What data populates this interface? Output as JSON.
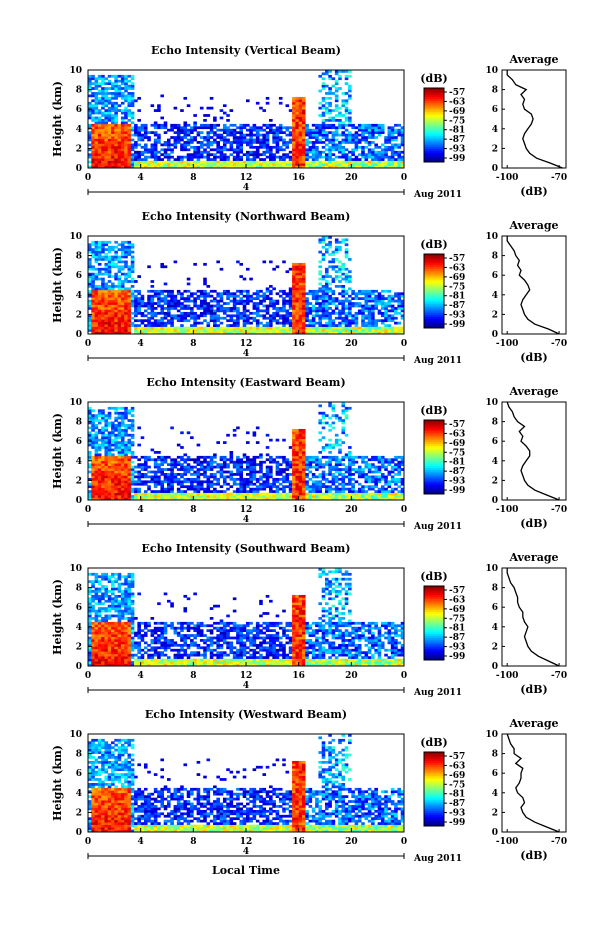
{
  "chart_data": [
    {
      "type": "heatmap",
      "title": "Echo Intensity (Vertical Beam)",
      "ylabel": "Height (km)",
      "xlabel": "",
      "x_ticks": [
        "0",
        "4",
        "8",
        "12",
        "16",
        "20",
        "0"
      ],
      "y_ticks": [
        "0",
        "2",
        "4",
        "6",
        "8",
        "10"
      ],
      "xlim": [
        0,
        24
      ],
      "ylim": [
        0,
        10
      ],
      "date_marker": "4",
      "date_label": "Aug 2011",
      "colorbar_title": "(dB)",
      "colorbar_ticks": [
        "-57",
        "-63",
        "-69",
        "-75",
        "-81",
        "-87",
        "-93",
        "-99"
      ],
      "profile_title": "Average",
      "profile_xlabel": "(dB)",
      "profile_x_ticks": [
        "-100",
        "-70"
      ],
      "profile_xlim": [
        -103,
        -66
      ],
      "profile": {
        "height_km": [
          0,
          0.5,
          1,
          1.5,
          2,
          2.5,
          3,
          3.5,
          4,
          4.5,
          5,
          5.5,
          6,
          6.5,
          7,
          7.5,
          8,
          8.5,
          9,
          9.5,
          10
        ],
        "db": [
          -68,
          -75,
          -83,
          -87,
          -89,
          -90,
          -91,
          -90,
          -88,
          -86,
          -85,
          -86,
          -90,
          -91,
          -90,
          -92,
          -89,
          -95,
          -97,
          -100,
          -100
        ]
      }
    },
    {
      "type": "heatmap",
      "title": "Echo Intensity (Northward Beam)",
      "ylabel": "Height (km)",
      "xlabel": "",
      "x_ticks": [
        "0",
        "4",
        "8",
        "12",
        "16",
        "20",
        "0"
      ],
      "y_ticks": [
        "0",
        "2",
        "4",
        "6",
        "8",
        "10"
      ],
      "xlim": [
        0,
        24
      ],
      "ylim": [
        0,
        10
      ],
      "date_marker": "4",
      "date_label": "Aug 2011",
      "colorbar_title": "(dB)",
      "colorbar_ticks": [
        "-57",
        "-63",
        "-69",
        "-75",
        "-81",
        "-87",
        "-93",
        "-99"
      ],
      "profile_title": "Average",
      "profile_xlabel": "(dB)",
      "profile_x_ticks": [
        "-100",
        "-70"
      ],
      "profile_xlim": [
        -103,
        -66
      ],
      "profile": {
        "height_km": [
          0,
          0.5,
          1,
          1.5,
          2,
          2.5,
          3,
          3.5,
          4,
          4.5,
          5,
          5.5,
          6,
          6.5,
          7,
          7.5,
          8,
          8.5,
          9,
          9.5,
          10
        ],
        "db": [
          -70,
          -76,
          -84,
          -88,
          -90,
          -91,
          -92,
          -91,
          -89,
          -87,
          -88,
          -90,
          -93,
          -92,
          -94,
          -93,
          -95,
          -96,
          -98,
          -100,
          -100
        ]
      }
    },
    {
      "type": "heatmap",
      "title": "Echo Intensity (Eastward Beam)",
      "ylabel": "Height (km)",
      "xlabel": "",
      "x_ticks": [
        "0",
        "4",
        "8",
        "12",
        "16",
        "20",
        "0"
      ],
      "y_ticks": [
        "0",
        "2",
        "4",
        "6",
        "8",
        "10"
      ],
      "xlim": [
        0,
        24
      ],
      "ylim": [
        0,
        10
      ],
      "date_marker": "4",
      "date_label": "Aug 2011",
      "colorbar_title": "(dB)",
      "colorbar_ticks": [
        "-57",
        "-63",
        "-69",
        "-75",
        "-81",
        "-87",
        "-93",
        "-99"
      ],
      "profile_title": "Average",
      "profile_xlabel": "(dB)",
      "profile_x_ticks": [
        "-100",
        "-70"
      ],
      "profile_xlim": [
        -103,
        -66
      ],
      "profile": {
        "height_km": [
          0,
          0.5,
          1,
          1.5,
          2,
          2.5,
          3,
          3.5,
          4,
          4.5,
          5,
          5.5,
          6,
          6.5,
          7,
          7.5,
          8,
          8.5,
          9,
          9.5,
          10
        ],
        "db": [
          -70,
          -77,
          -84,
          -88,
          -90,
          -91,
          -92,
          -91,
          -89,
          -87,
          -87,
          -89,
          -92,
          -91,
          -93,
          -90,
          -94,
          -96,
          -97,
          -99,
          -100
        ]
      }
    },
    {
      "type": "heatmap",
      "title": "Echo Intensity (Southward Beam)",
      "ylabel": "Height (km)",
      "xlabel": "",
      "x_ticks": [
        "0",
        "4",
        "8",
        "12",
        "16",
        "20",
        "0"
      ],
      "y_ticks": [
        "0",
        "2",
        "4",
        "6",
        "8",
        "10"
      ],
      "xlim": [
        0,
        24
      ],
      "ylim": [
        0,
        10
      ],
      "date_marker": "4",
      "date_label": "Aug 2011",
      "colorbar_title": "(dB)",
      "colorbar_ticks": [
        "-57",
        "-63",
        "-69",
        "-75",
        "-81",
        "-87",
        "-93",
        "-99"
      ],
      "profile_title": "Average",
      "profile_xlabel": "(dB)",
      "profile_x_ticks": [
        "-100",
        "-70"
      ],
      "profile_xlim": [
        -103,
        -66
      ],
      "profile": {
        "height_km": [
          0,
          0.5,
          1,
          1.5,
          2,
          2.5,
          3,
          3.5,
          4,
          4.5,
          5,
          5.5,
          6,
          6.5,
          7,
          7.5,
          8,
          8.5,
          9,
          9.5,
          10
        ],
        "db": [
          -70,
          -76,
          -82,
          -86,
          -88,
          -89,
          -90,
          -89,
          -88,
          -90,
          -91,
          -91,
          -93,
          -94,
          -94,
          -95,
          -96,
          -98,
          -99,
          -100,
          -100
        ]
      }
    },
    {
      "type": "heatmap",
      "title": "Echo Intensity (Westward Beam)",
      "ylabel": "Height (km)",
      "xlabel": "Local Time",
      "x_ticks": [
        "0",
        "4",
        "8",
        "12",
        "16",
        "20",
        "0"
      ],
      "y_ticks": [
        "0",
        "2",
        "4",
        "6",
        "8",
        "10"
      ],
      "xlim": [
        0,
        24
      ],
      "ylim": [
        0,
        10
      ],
      "date_marker": "4",
      "date_label": "Aug 2011",
      "colorbar_title": "(dB)",
      "colorbar_ticks": [
        "-57",
        "-63",
        "-69",
        "-75",
        "-81",
        "-87",
        "-93",
        "-99"
      ],
      "profile_title": "Average",
      "profile_xlabel": "(dB)",
      "profile_x_ticks": [
        "-100",
        "-70"
      ],
      "profile_xlim": [
        -103,
        -66
      ],
      "profile": {
        "height_km": [
          0,
          0.5,
          1,
          1.5,
          2,
          2.5,
          3,
          3.5,
          4,
          4.5,
          5,
          5.5,
          6,
          6.5,
          7,
          7.5,
          8,
          8.5,
          9,
          9.5,
          10
        ],
        "db": [
          -70,
          -77,
          -84,
          -89,
          -91,
          -92,
          -90,
          -91,
          -94,
          -95,
          -93,
          -92,
          -92,
          -91,
          -95,
          -92,
          -96,
          -96,
          -98,
          -99,
          -100
        ]
      }
    }
  ]
}
